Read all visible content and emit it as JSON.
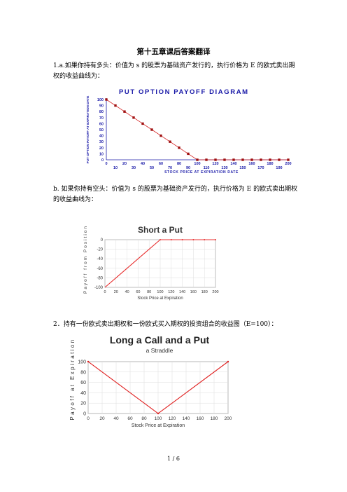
{
  "page": {
    "title": "第十五章课后答案翻译",
    "q1a": "1.a.如果你持有多头：价值为 s 的股票为基础资产发行的，执行价格为 E 的欧式卖出期权的收益曲线为：",
    "q1b": "b. 如果你持有空头：价值为 s 的股票为基础资产发行的，执行价格为 E 的欧式卖出期权的收益曲线为：",
    "q2": "2．持有一份欧式卖出期权和一份欧式买入期权的投资组合的收益图（E=100）：",
    "footer": "1 / 6"
  },
  "chart_data": [
    {
      "type": "line",
      "title": "PUT OPTION PAYOFF DIAGRAM",
      "xlabel": "STOCK PRICE AT EXPIRATION DATE",
      "ylabel": "PUT OPTION PAYOFF AT EXPIRATION DATE",
      "x": [
        0,
        10,
        20,
        30,
        40,
        50,
        60,
        70,
        80,
        90,
        100,
        110,
        120,
        130,
        140,
        150,
        160,
        170,
        180,
        190,
        200
      ],
      "y": [
        100,
        90,
        80,
        70,
        60,
        50,
        40,
        30,
        20,
        10,
        0,
        0,
        0,
        0,
        0,
        0,
        0,
        0,
        0,
        0,
        0
      ],
      "ylim": [
        0,
        100
      ],
      "yticks": [
        "0",
        "10",
        "20",
        "30",
        "40",
        "50",
        "60",
        "70",
        "80",
        "90",
        "100"
      ],
      "xticks_top": [
        "0",
        "20",
        "40",
        "60",
        "80",
        "100",
        "120",
        "140",
        "160",
        "180",
        "200"
      ],
      "xticks_bottom": [
        "10",
        "30",
        "50",
        "70",
        "90",
        "110",
        "130",
        "150",
        "170",
        "190"
      ],
      "color": "#d42020",
      "marker_color": "#9e1010"
    },
    {
      "type": "line",
      "title": "Short a Put",
      "xlabel": "Stock Price at Expiration",
      "ylabel": "Payoff from Position",
      "x": [
        0,
        20,
        40,
        60,
        80,
        100,
        120,
        140,
        160,
        180,
        200
      ],
      "y": [
        -100,
        -80,
        -60,
        -40,
        -20,
        0,
        0,
        0,
        0,
        0,
        0
      ],
      "xlim": [
        0,
        200
      ],
      "ylim": [
        -100,
        0
      ],
      "xticks": [
        "0",
        "20",
        "40",
        "60",
        "80",
        "100",
        "120",
        "140",
        "160",
        "180",
        "200"
      ],
      "yticks": [
        "0",
        "-20",
        "-40",
        "-60",
        "-80",
        "-100"
      ],
      "color": "#e83030"
    },
    {
      "type": "line",
      "title": "Long a Call and a Put",
      "subtitle": "a Straddle",
      "xlabel": "Stock Price at Expiration",
      "ylabel": "Payoff at Expiration",
      "x": [
        0,
        100,
        200
      ],
      "y": [
        100,
        0,
        100
      ],
      "xlim": [
        0,
        200
      ],
      "ylim": [
        0,
        100
      ],
      "xticks": [
        "0",
        "20",
        "40",
        "60",
        "80",
        "100",
        "120",
        "140",
        "160",
        "180",
        "200"
      ],
      "yticks": [
        "0",
        "20",
        "40",
        "60",
        "80",
        "100"
      ],
      "color": "#e02020"
    }
  ]
}
